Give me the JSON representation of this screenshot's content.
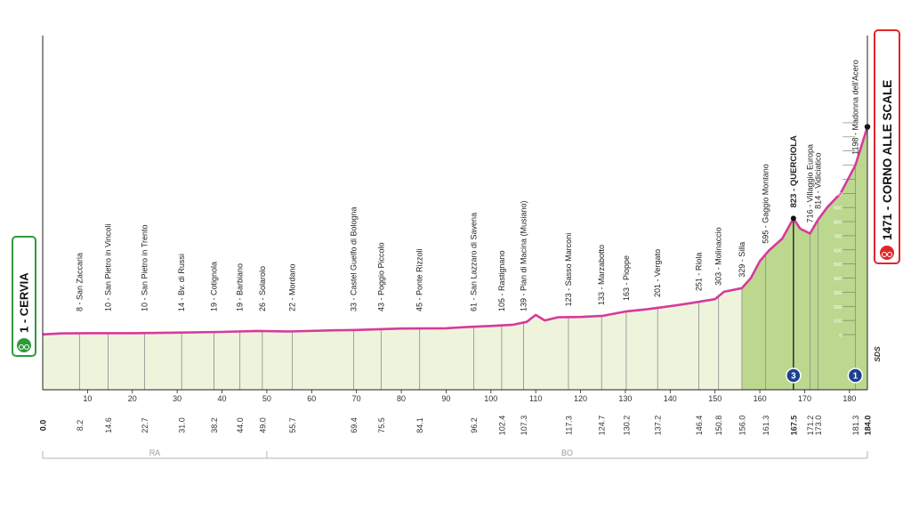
{
  "chart_data": {
    "type": "area",
    "start": {
      "km": "1",
      "name": "CERVIA"
    },
    "finish": {
      "km": "1471",
      "name": "CORNO ALLE SCALE"
    },
    "profile": {
      "x": [
        0,
        4,
        10,
        20,
        30,
        40,
        48,
        55,
        65,
        70,
        80,
        90,
        95,
        100,
        105,
        108,
        110,
        112,
        115,
        120,
        125,
        130,
        135,
        140,
        145,
        150,
        152,
        156,
        158,
        160,
        162,
        165,
        167.5,
        169,
        171.2,
        173,
        175,
        178,
        181.3,
        184
      ],
      "y": [
        1,
        8,
        10,
        10,
        14,
        19,
        26,
        22,
        30,
        33,
        43,
        45,
        54,
        61,
        70,
        90,
        139,
        100,
        123,
        125,
        133,
        163,
        180,
        201,
        225,
        251,
        303,
        329,
        400,
        520,
        595,
        680,
        823,
        750,
        716,
        814,
        900,
        1000,
        1198,
        1471
      ]
    },
    "elevation_ticks": [
      "1500",
      "1400",
      "1300",
      "1200",
      "1100",
      "1000",
      "900",
      "800",
      "700",
      "600",
      "500",
      "400",
      "300",
      "200",
      "100",
      "0"
    ],
    "x_ticks": [
      "10",
      "20",
      "30",
      "40",
      "50",
      "60",
      "70",
      "80",
      "90",
      "100",
      "110",
      "120",
      "130",
      "140",
      "150",
      "160",
      "170",
      "180"
    ],
    "places": [
      {
        "km": "8.2",
        "label": "8 - San Zaccaria"
      },
      {
        "km": "14.6",
        "label": "10 - San Pietro in Vincoli"
      },
      {
        "km": "22.7",
        "label": "10 - San Pietro in Trento"
      },
      {
        "km": "31.0",
        "label": "14 - Bv. di Russi"
      },
      {
        "km": "38.2",
        "label": "19 - Cotignola"
      },
      {
        "km": "44.0",
        "label": "19 - Barbiano"
      },
      {
        "km": "49.0",
        "label": "26 - Solarolo"
      },
      {
        "km": "55.7",
        "label": "22 - Mordano"
      },
      {
        "km": "69.4",
        "label": "33 - Castel Guelfo di Bologna"
      },
      {
        "km": "75.5",
        "label": "43 - Poggio Piccolo"
      },
      {
        "km": "84.1",
        "label": "45 - Ponte Rizzoli"
      },
      {
        "km": "96.2",
        "label": "61 - San Lazzaro di Savena"
      },
      {
        "km": "102.4",
        "label": "105 - Rastignano"
      },
      {
        "km": "107.3",
        "label": "139 - Pian di Macina (Musiano)"
      },
      {
        "km": "117.3",
        "label": "123 - Sasso Marconi"
      },
      {
        "km": "124.7",
        "label": "133 - Marzabotto"
      },
      {
        "km": "130.2",
        "label": "163 - Pioppe"
      },
      {
        "km": "137.2",
        "label": "201 - Vergato"
      },
      {
        "km": "146.4",
        "label": "251 - Riola"
      },
      {
        "km": "150.8",
        "label": "303 - Molinaccio"
      },
      {
        "km": "156.0",
        "label": "329 - Silla"
      },
      {
        "km": "161.3",
        "label": "595 - Gaggio Montano"
      },
      {
        "km": "167.5",
        "label": "823 - QUERCIOLA",
        "bold": true
      },
      {
        "km": "171.2",
        "label": "716 - Villaggio Europa"
      },
      {
        "km": "173.0",
        "label": "814 - Vidiciatico"
      },
      {
        "km": "181.3",
        "label": "1198 - Madonna dell'Acero"
      }
    ],
    "markers": [
      {
        "km": "167.5",
        "label": "3"
      },
      {
        "km": "181.3",
        "label": "1"
      }
    ],
    "sds_label": "SDS",
    "regions": [
      {
        "from": 0,
        "to": 50,
        "label": "RA"
      },
      {
        "from": 50,
        "to": 184,
        "label": "BO"
      }
    ],
    "x_range": [
      0,
      184
    ],
    "end_km_label": "184.0",
    "start_km_label": "0.0",
    "colors": {
      "profile_line": "#d63a9c",
      "flat_fill": "#eef4dc",
      "climb_fill": "#bcd88f",
      "start_border": "#2e9a3c",
      "finish_border": "#e0262a"
    }
  }
}
